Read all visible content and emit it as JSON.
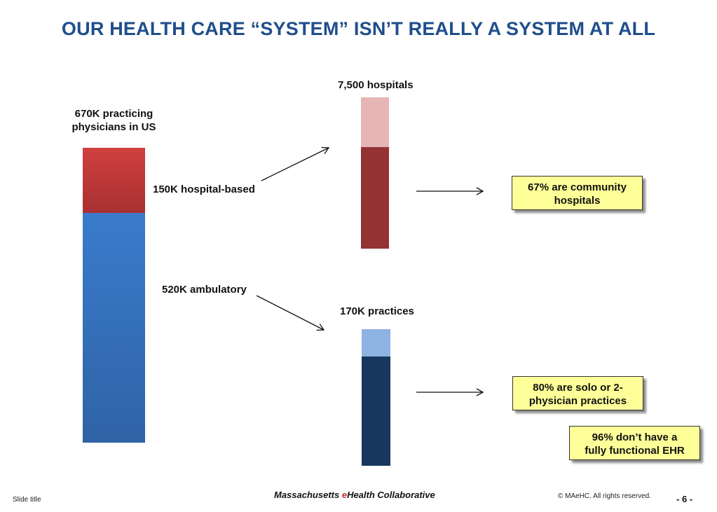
{
  "title": "OUR HEALTH CARE “SYSTEM” ISN’T REALLY A SYSTEM AT ALL",
  "physicians": {
    "total_label_line1": "670K practicing",
    "total_label_line2": "physicians in US",
    "hospital_based_label": "150K hospital-based",
    "ambulatory_label": "520K ambulatory",
    "hospital_based_color": "#c0393a",
    "ambulatory_color": "#3670b8"
  },
  "hospitals": {
    "label": "7,500 hospitals",
    "community_share": 0.67,
    "community_color": "#943234",
    "other_color": "#e6b6b6",
    "callout_line1": "67% are community",
    "callout_line2": "hospitals"
  },
  "practices": {
    "label": "170K practices",
    "small_share": 0.8,
    "small_color": "#17375e",
    "other_color": "#8db3e2",
    "callout_line1": "80% are solo or 2-",
    "callout_line2": "physician practices",
    "ehr_line1": "96% don’t have a",
    "ehr_line2": "fully functional EHR"
  },
  "footer": {
    "slide_title": "Slide title",
    "org_prefix": "Massachusetts ",
    "org_e": "e",
    "org_suffix": "Health Collaborative",
    "copyright": "© MAeHC.  All rights reserved.",
    "page": "- 6 -"
  }
}
